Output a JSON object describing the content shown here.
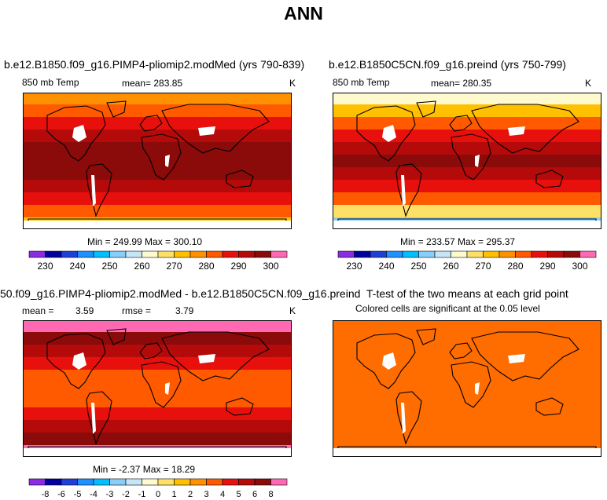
{
  "main_title": "ANN",
  "chart_data": [
    {
      "type": "heatmap",
      "title": "b.e12.B1850.f09_g16.PIMP4-pliomip2.modMed (yrs 790-839)",
      "variable": "850 mb Temp",
      "mean_label": "mean= 283.85",
      "units": "K",
      "range_label": "Min = 249.99 Max = 300.10",
      "levels": [
        230,
        235,
        240,
        245,
        250,
        255,
        260,
        265,
        270,
        275,
        280,
        285,
        290,
        295,
        300
      ],
      "tick_labels": [
        "230",
        "240",
        "250",
        "260",
        "270",
        "280",
        "290",
        "300"
      ],
      "colors": [
        "#8b2be2",
        "#0000a0",
        "#1e40d8",
        "#1e90ff",
        "#00bfff",
        "#87cefa",
        "#c6e6f8",
        "#fffacd",
        "#ffe066",
        "#ffc000",
        "#ff9000",
        "#ff5a00",
        "#e8100c",
        "#b40a0a",
        "#8b0a0a",
        "#ff69b4"
      ],
      "band_values": [
        275,
        282,
        289,
        293,
        297,
        298,
        297,
        293,
        288,
        281,
        273
      ]
    },
    {
      "type": "heatmap",
      "title": "b.e12.B1850C5CN.f09_g16.preind (yrs 750-799)",
      "variable": "850 mb Temp",
      "mean_label": "mean= 280.35",
      "units": "K",
      "range_label": "Min = 233.57 Max = 295.37",
      "levels": [
        230,
        235,
        240,
        245,
        250,
        255,
        260,
        265,
        270,
        275,
        280,
        285,
        290,
        295,
        300
      ],
      "tick_labels": [
        "230",
        "240",
        "250",
        "260",
        "270",
        "280",
        "290",
        "300"
      ],
      "colors": [
        "#8b2be2",
        "#0000a0",
        "#1e40d8",
        "#1e90ff",
        "#00bfff",
        "#87cefa",
        "#c6e6f8",
        "#fffacd",
        "#ffe066",
        "#ffc000",
        "#ff9000",
        "#ff5a00",
        "#e8100c",
        "#b40a0a",
        "#8b0a0a",
        "#ff69b4"
      ],
      "band_values": [
        262,
        271,
        282,
        289,
        293,
        295,
        293,
        289,
        281,
        268,
        254
      ]
    },
    {
      "type": "heatmap",
      "title": "50.f09_g16.PIMP4-pliomip2.modMed - b.e12.B1850C5CN.f09_g16.preind",
      "mean_label": "mean =",
      "mean_value": "3.59",
      "rmse_label": "rmse =",
      "rmse_value": "3.79",
      "units": "K",
      "range_label": "Min = -2.37 Max = 18.29",
      "levels": [
        -8,
        -7,
        -6,
        -5,
        -4,
        -3,
        -2,
        -1,
        0,
        1,
        2,
        3,
        4,
        5,
        6,
        8
      ],
      "tick_labels": [
        "-8",
        "-6",
        "-5",
        "-4",
        "-3",
        "-2",
        "-1",
        "0",
        "1",
        "2",
        "3",
        "4",
        "5",
        "6",
        "8"
      ],
      "colors": [
        "#8b2be2",
        "#0000a0",
        "#1e40d8",
        "#1e90ff",
        "#00bfff",
        "#87cefa",
        "#c6e6f8",
        "#fffacd",
        "#ffe066",
        "#ffc000",
        "#ff9000",
        "#ff5a00",
        "#e8100c",
        "#b40a0a",
        "#8b0a0a",
        "#ff69b4"
      ],
      "band_values": [
        6,
        5.5,
        4.5,
        3.5,
        2.5,
        2.5,
        2.5,
        3.5,
        4.5,
        5.5,
        7
      ]
    },
    {
      "type": "heatmap",
      "title": "T-test of the two means at each grid point",
      "subtitle": "Colored cells are significant at the 0.05 level",
      "fill_color": "#ff6c00"
    }
  ]
}
